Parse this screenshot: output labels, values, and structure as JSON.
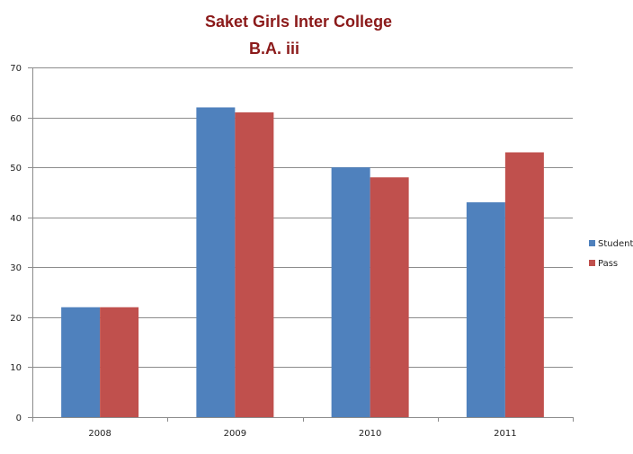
{
  "chart_data": {
    "type": "bar",
    "title": "Saket Girls Inter College",
    "subtitle": "B.A. iii",
    "xlabel": "",
    "ylabel": "",
    "categories": [
      "2008",
      "2009",
      "2010",
      "2011"
    ],
    "series": [
      {
        "name": "Student",
        "color": "#4F81BD",
        "values": [
          22,
          62,
          50,
          43
        ]
      },
      {
        "name": "Pass",
        "color": "#C0504D",
        "values": [
          22,
          61,
          48,
          53
        ]
      }
    ],
    "ylim": [
      0,
      70
    ],
    "yticks": [
      "0",
      "10",
      "20",
      "30",
      "40",
      "50",
      "60",
      "70"
    ],
    "grid": true,
    "legend_position": "right"
  }
}
